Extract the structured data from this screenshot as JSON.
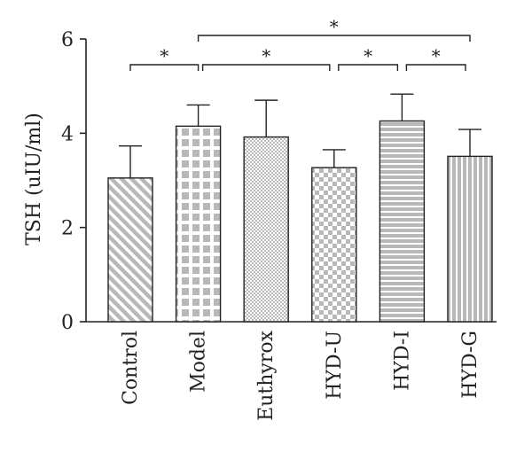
{
  "chart_data": {
    "type": "bar",
    "categories": [
      "Control",
      "Model",
      "Euthyrox",
      "HYD-U",
      "HYD-I",
      "HYD-G"
    ],
    "values": [
      3.05,
      4.15,
      3.92,
      3.27,
      4.26,
      3.51
    ],
    "errors": [
      0.68,
      0.45,
      0.78,
      0.38,
      0.57,
      0.57
    ],
    "ylabel": "TSH (uIU/ml)",
    "xlabel": "",
    "title": "",
    "ylim": [
      0,
      6
    ],
    "yticks": [
      "0",
      "2",
      "4",
      "6"
    ],
    "significance": [
      {
        "from": "Control",
        "to": "Model",
        "label": "*"
      },
      {
        "from": "Model",
        "to": "HYD-U",
        "label": "*"
      },
      {
        "from": "HYD-U",
        "to": "HYD-I",
        "label": "*"
      },
      {
        "from": "HYD-I",
        "to": "HYD-G",
        "label": "*"
      },
      {
        "from": "Model",
        "to": "HYD-G",
        "label": "*"
      }
    ],
    "patterns": [
      "diagonal-stripes",
      "large-checker",
      "fine-dots",
      "medium-checker",
      "horizontal-stripes",
      "vertical-stripes"
    ],
    "colors": {
      "bar_fill": "#b8b8b8",
      "pattern_light": "#ffffff",
      "outline": "#222222"
    },
    "grid": false,
    "legend": "none"
  }
}
